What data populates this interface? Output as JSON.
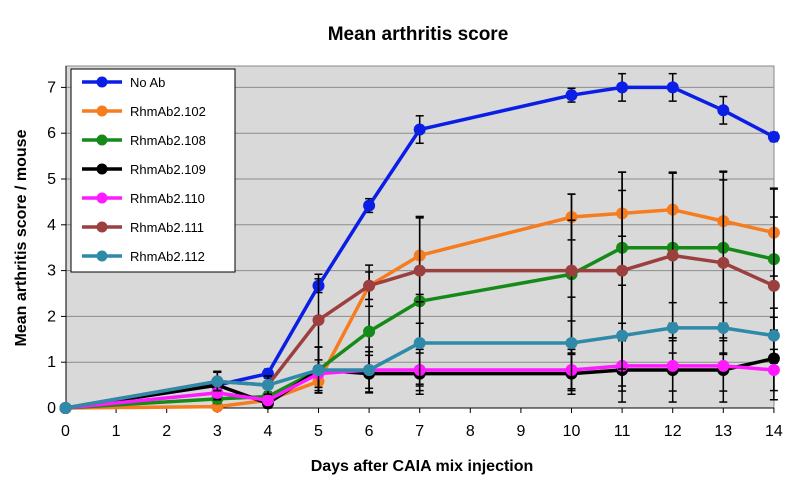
{
  "chart_data": {
    "type": "line",
    "title": "Mean arthritis score",
    "xlabel": "Days after CAIA mix injection",
    "ylabel": "Mean arthritis score / mouse",
    "xlim": [
      0,
      14
    ],
    "ylim": [
      0,
      7.5
    ],
    "xticks": [
      0,
      1,
      2,
      3,
      4,
      5,
      6,
      7,
      8,
      9,
      10,
      11,
      12,
      13,
      14
    ],
    "yticks": [
      0,
      1,
      2,
      3,
      4,
      5,
      6,
      7
    ],
    "grid": "horizontal",
    "legend_position": "top-left",
    "plot_background": "#d9d9d9",
    "series": [
      {
        "name": "No Ab",
        "color": "#0a1ee6",
        "x": [
          0,
          3,
          4,
          5,
          6,
          7,
          10,
          11,
          12,
          13,
          14
        ],
        "y": [
          0,
          0.5,
          0.75,
          2.67,
          4.42,
          6.08,
          6.83,
          7.0,
          7.0,
          6.5,
          5.92
        ],
        "err": [
          0,
          0.3,
          0.1,
          0.15,
          0.15,
          0.3,
          0.15,
          0.3,
          0.3,
          0.3,
          0.1
        ]
      },
      {
        "name": "RhmAb2.102",
        "color": "#f57c1f",
        "x": [
          0,
          3,
          4,
          5,
          6,
          7,
          10,
          11,
          12,
          13,
          14
        ],
        "y": [
          0,
          0.03,
          0.17,
          0.58,
          2.67,
          3.33,
          4.17,
          4.25,
          4.33,
          4.08,
          3.83
        ],
        "err": [
          0,
          0.05,
          0.1,
          0.2,
          0.3,
          0.85,
          0.5,
          0.5,
          0.8,
          0.9,
          0.95
        ]
      },
      {
        "name": "RhmAb2.108",
        "color": "#168a18",
        "x": [
          0,
          3,
          4,
          5,
          6,
          7,
          10,
          11,
          12,
          13,
          14
        ],
        "y": [
          0,
          0.2,
          0.25,
          0.83,
          1.67,
          2.33,
          2.92,
          3.5,
          3.5,
          3.5,
          3.25
        ],
        "err": [
          0,
          0.1,
          0.1,
          0.5,
          1.0,
          1.85,
          1.75,
          1.65,
          1.65,
          1.65,
          1.55
        ]
      },
      {
        "name": "RhmAb2.109",
        "color": "#000000",
        "x": [
          0,
          3,
          4,
          5,
          6,
          7,
          10,
          11,
          12,
          13,
          14
        ],
        "y": [
          0,
          0.5,
          0.1,
          0.83,
          0.75,
          0.75,
          0.75,
          0.83,
          0.83,
          0.83,
          1.08
        ],
        "err": [
          0,
          0.3,
          0.1,
          0.5,
          0.4,
          0.45,
          0.45,
          0.7,
          0.7,
          0.7,
          0.9
        ]
      },
      {
        "name": "RhmAb2.110",
        "color": "#ff1aff",
        "x": [
          0,
          3,
          4,
          5,
          6,
          7,
          10,
          11,
          12,
          13,
          14
        ],
        "y": [
          0,
          0.33,
          0.17,
          0.75,
          0.83,
          0.83,
          0.83,
          0.92,
          0.92,
          0.92,
          0.83
        ],
        "err": [
          0,
          0.15,
          0.1,
          0.3,
          0.4,
          0.45,
          0.45,
          0.55,
          0.55,
          0.55,
          0.45
        ]
      },
      {
        "name": "RhmAb2.111",
        "color": "#9c3f3f",
        "x": [
          0,
          3,
          4,
          5,
          6,
          7,
          10,
          11,
          12,
          13,
          14
        ],
        "y": [
          0,
          0.58,
          0.5,
          1.92,
          2.67,
          3.0,
          3.0,
          3.0,
          3.33,
          3.17,
          2.67
        ],
        "err": [
          0,
          0.2,
          0.2,
          1.0,
          0.45,
          1.15,
          1.1,
          2.15,
          1.8,
          2.0,
          1.5
        ]
      },
      {
        "name": "RhmAb2.112",
        "color": "#2e8aa8",
        "x": [
          0,
          3,
          4,
          5,
          6,
          7,
          10,
          11,
          12,
          13,
          14
        ],
        "y": [
          0,
          0.58,
          0.5,
          0.83,
          0.83,
          1.42,
          1.42,
          1.58,
          1.75,
          1.75,
          1.58
        ],
        "err": [
          0,
          0.2,
          0.2,
          0.5,
          0.5,
          0.9,
          1.0,
          1.1,
          0.55,
          0.55,
          0.6
        ]
      }
    ]
  }
}
